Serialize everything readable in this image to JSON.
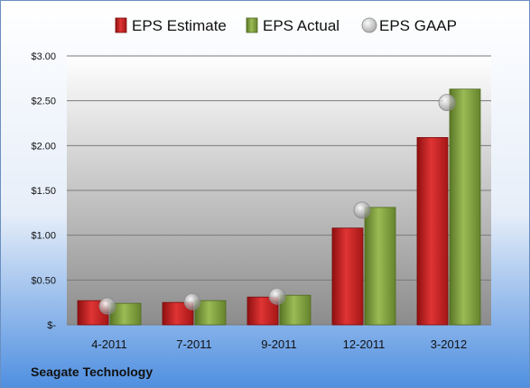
{
  "chart_data": {
    "type": "bar",
    "categories": [
      "4-2011",
      "7-2011",
      "9-2011",
      "12-2011",
      "3-2012"
    ],
    "series": [
      {
        "name": "EPS Estimate",
        "type": "bar",
        "color": "#c81e1e",
        "values": [
          0.27,
          0.25,
          0.31,
          1.08,
          2.09
        ]
      },
      {
        "name": "EPS Actual",
        "type": "bar",
        "color": "#7a9a3a",
        "values": [
          0.24,
          0.27,
          0.33,
          1.31,
          2.63
        ]
      },
      {
        "name": "EPS GAAP",
        "type": "marker",
        "color": "#a8a8a8",
        "values": [
          0.21,
          0.26,
          0.32,
          1.28,
          2.48
        ]
      }
    ],
    "ylim": [
      0,
      3
    ],
    "yticks": [
      0,
      0.5,
      1.0,
      1.5,
      2.0,
      2.5,
      3.0
    ],
    "ytick_labels": [
      "$-",
      "$0.50",
      "$1.00",
      "$1.50",
      "$2.00",
      "$2.50",
      "$3.00"
    ],
    "grid": true,
    "legend_position": "top",
    "title": "",
    "xlabel": "",
    "ylabel": ""
  },
  "footer": {
    "company": "Seagate Technology"
  },
  "colors": {
    "background_top": "#ffffff",
    "background_bottom": "#4f8fe0",
    "plot_top": "#ffffff",
    "plot_bottom": "#8c8c8c"
  }
}
